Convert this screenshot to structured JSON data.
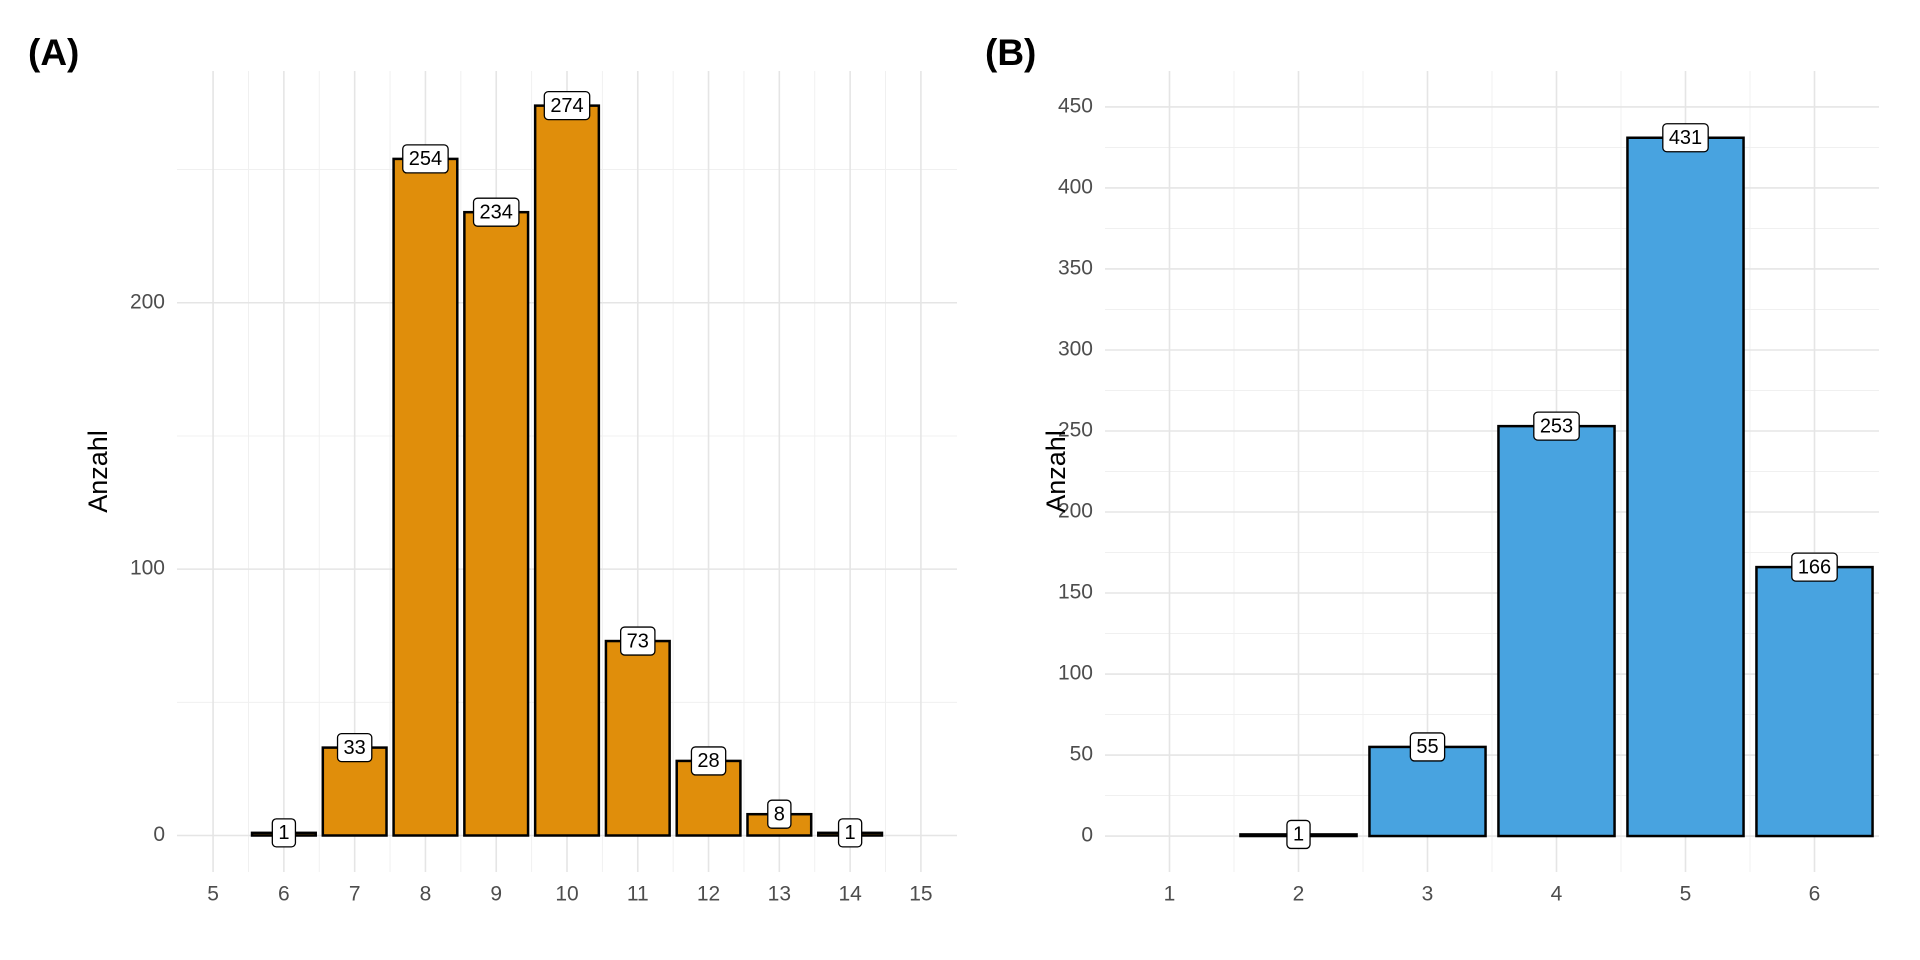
{
  "chart_data": [
    {
      "type": "bar",
      "title": "(A)",
      "ylabel": "Anzahl",
      "x": [
        6,
        7,
        8,
        9,
        10,
        11,
        12,
        13,
        14
      ],
      "values": [
        1,
        33,
        254,
        234,
        274,
        73,
        28,
        8,
        1
      ],
      "color": "#e08e0b",
      "xlim": [
        4.49,
        15.51
      ],
      "xticks": [
        5,
        6,
        7,
        8,
        9,
        10,
        11,
        12,
        13,
        14,
        15
      ],
      "ylim": [
        -13.7,
        287
      ],
      "yticks": [
        0,
        100,
        200
      ],
      "grid": true
    },
    {
      "type": "bar",
      "title": "(B)",
      "ylabel": "Anzahl",
      "x": [
        2,
        3,
        4,
        5,
        6
      ],
      "values": [
        1,
        55,
        253,
        431,
        166
      ],
      "color": "#48a3e0",
      "xlim": [
        0.5,
        6.5
      ],
      "xticks": [
        1,
        2,
        3,
        4,
        5,
        6
      ],
      "ylim": [
        -22.2,
        472.2
      ],
      "yticks": [
        0,
        50,
        100,
        150,
        200,
        250,
        300,
        350,
        400,
        450
      ],
      "grid": true
    }
  ]
}
